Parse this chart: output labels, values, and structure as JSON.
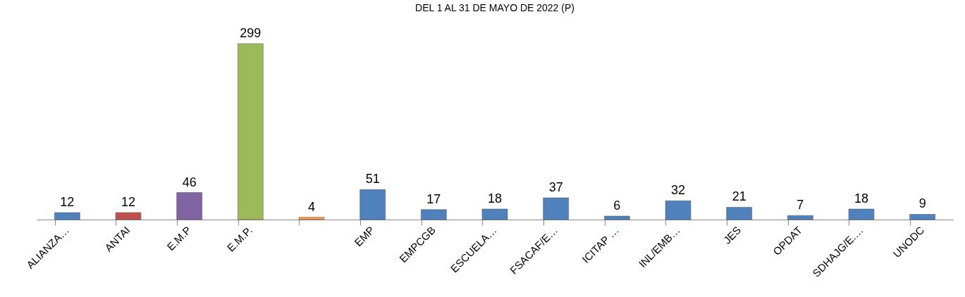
{
  "chart_data": {
    "type": "bar",
    "title": "DEL 1 AL 31 DE MAYO DE 2022 (P)",
    "categories": [
      "ALIANZA…",
      "ANTAI",
      "E.M.P",
      "E.M.P. ",
      null,
      "EMP",
      "EMPCGB",
      "ESCUELA…",
      "FSACAF/E…",
      "ICITAP …",
      "INL/EMB…",
      "JES",
      "OPDAT",
      "SDHAJG/E.…",
      "UNODC"
    ],
    "values": [
      12,
      12,
      46,
      299,
      4,
      51,
      17,
      18,
      37,
      6,
      32,
      21,
      7,
      18,
      9
    ],
    "colors": [
      "#4f81bd",
      "#c0504d",
      "#8064a2",
      "#9bbb59",
      "#f79646",
      "#4f81bd",
      "#4f81bd",
      "#4f81bd",
      "#4f81bd",
      "#4f81bd",
      "#4f81bd",
      "#4f81bd",
      "#4f81bd",
      "#4f81bd",
      "#4f81bd"
    ],
    "data_labels": true,
    "grid": false
  }
}
